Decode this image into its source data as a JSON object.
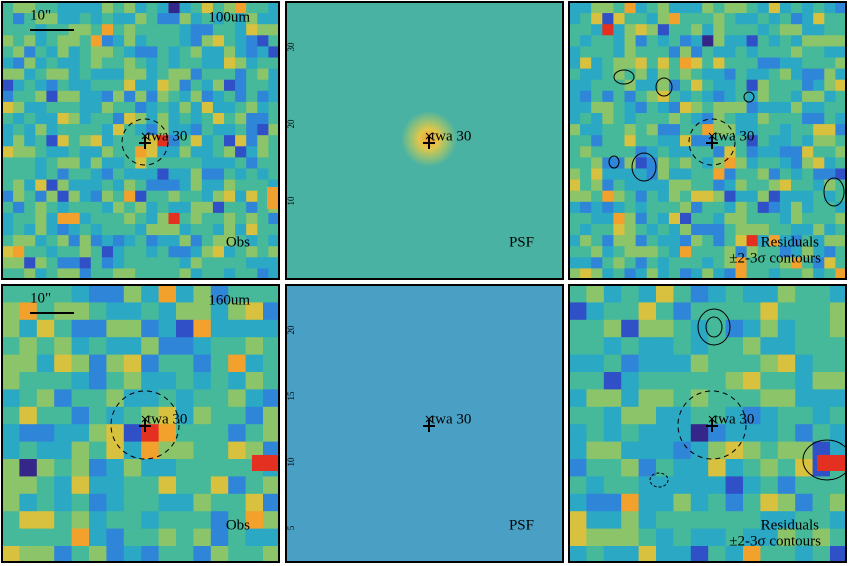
{
  "panels": [
    {
      "band": "100um",
      "scale": "10\"",
      "target": "twa 30",
      "label": "Obs"
    },
    {
      "target": "twa 30",
      "label": "PSF",
      "ticks": [
        "30",
        "20",
        "10"
      ]
    },
    {
      "target": "twa 30",
      "label": "Residuals",
      "note": "±2-3σ contours"
    },
    {
      "band": "160um",
      "scale": "10\"",
      "target": "twa 30",
      "label": "Obs"
    },
    {
      "target": "twa 30",
      "label": "PSF",
      "ticks": [
        "20",
        "15",
        "10",
        "5"
      ]
    },
    {
      "target": "twa 30",
      "label": "Residuals",
      "note": "±2-3σ contours"
    }
  ]
}
